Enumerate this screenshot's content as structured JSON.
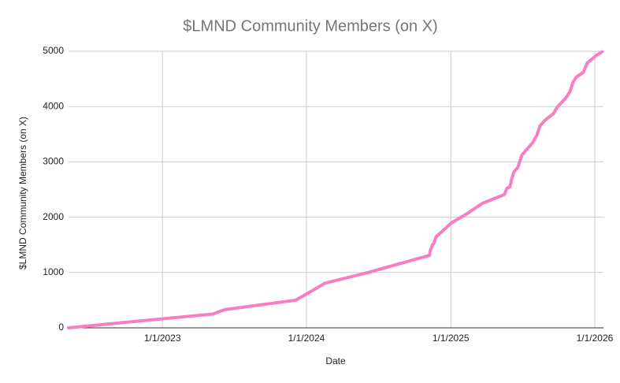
{
  "chart_data": {
    "type": "line",
    "title": "$LMND Community Members (on X)",
    "x_label": "Date",
    "y_label": "$LMND Community Members (on X)",
    "x": [
      "2022-05-08",
      "2023-05-09",
      "2023-06-08",
      "2023-12-05",
      "2024-02-18",
      "2024-06-05",
      "2024-11-08",
      "2024-11-10",
      "2024-11-16",
      "2024-11-20",
      "2024-11-24",
      "2025-01-03",
      "2025-02-06",
      "2025-03-22",
      "2025-05-17",
      "2025-05-23",
      "2025-05-31",
      "2025-06-04",
      "2025-06-10",
      "2025-06-20",
      "2025-06-30",
      "2025-07-12",
      "2025-07-28",
      "2025-08-07",
      "2025-08-15",
      "2025-08-29",
      "2025-09-18",
      "2025-09-28",
      "2025-10-20",
      "2025-10-30",
      "2025-11-07",
      "2025-11-15",
      "2025-12-03",
      "2025-12-13",
      "2025-12-27",
      "2026-01-06",
      "2026-01-20"
    ],
    "series": [
      {
        "name": "$LMND Community Members (on X)",
        "color": "#f77fc0",
        "values": [
          0,
          250,
          330,
          500,
          810,
          1000,
          1310,
          1400,
          1500,
          1540,
          1640,
          1900,
          2040,
          2250,
          2410,
          2520,
          2550,
          2680,
          2820,
          2900,
          3120,
          3220,
          3350,
          3480,
          3650,
          3760,
          3870,
          3990,
          4160,
          4270,
          4440,
          4530,
          4620,
          4790,
          4870,
          4930,
          4990
        ]
      }
    ],
    "xlim": [
      "2022-05-08",
      "2026-01-23"
    ],
    "xticks": [
      {
        "value": "2023-01-01",
        "label": "1/1/2023"
      },
      {
        "value": "2024-01-01",
        "label": "1/1/2024"
      },
      {
        "value": "2025-01-01",
        "label": "1/1/2025"
      },
      {
        "value": "2026-01-01",
        "label": "1/1/2026"
      }
    ],
    "ylim": [
      0,
      5000
    ],
    "yticks": [
      0,
      1000,
      2000,
      3000,
      4000,
      5000
    ],
    "grid": true
  }
}
